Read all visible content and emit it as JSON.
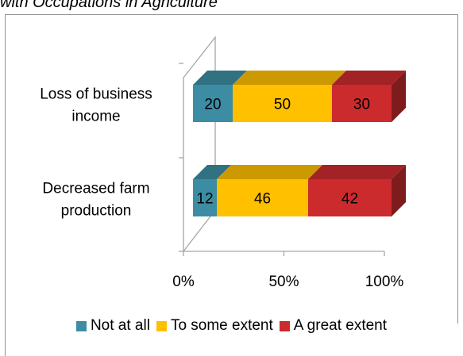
{
  "header": {
    "title": "with Occupations in Agriculture"
  },
  "chart_data": {
    "type": "bar",
    "orientation": "horizontal",
    "stacked": "100%",
    "three_d": true,
    "categories": [
      "Loss of business income",
      "Decreased farm production"
    ],
    "category_lines": [
      [
        "Loss of business",
        "income"
      ],
      [
        "Decreased farm",
        "production"
      ]
    ],
    "series": [
      {
        "name": "Not at all",
        "values": [
          20,
          12
        ],
        "color": "#3C8DA3"
      },
      {
        "name": "To some extent",
        "values": [
          50,
          46
        ],
        "color": "#FFC000"
      },
      {
        "name": "A great extent",
        "values": [
          30,
          42
        ],
        "color": "#CC2B2E"
      }
    ],
    "xticks": [
      "0%",
      "50%",
      "100%"
    ],
    "xlim": [
      0,
      100
    ],
    "legend_position": "bottom",
    "grid": false
  }
}
